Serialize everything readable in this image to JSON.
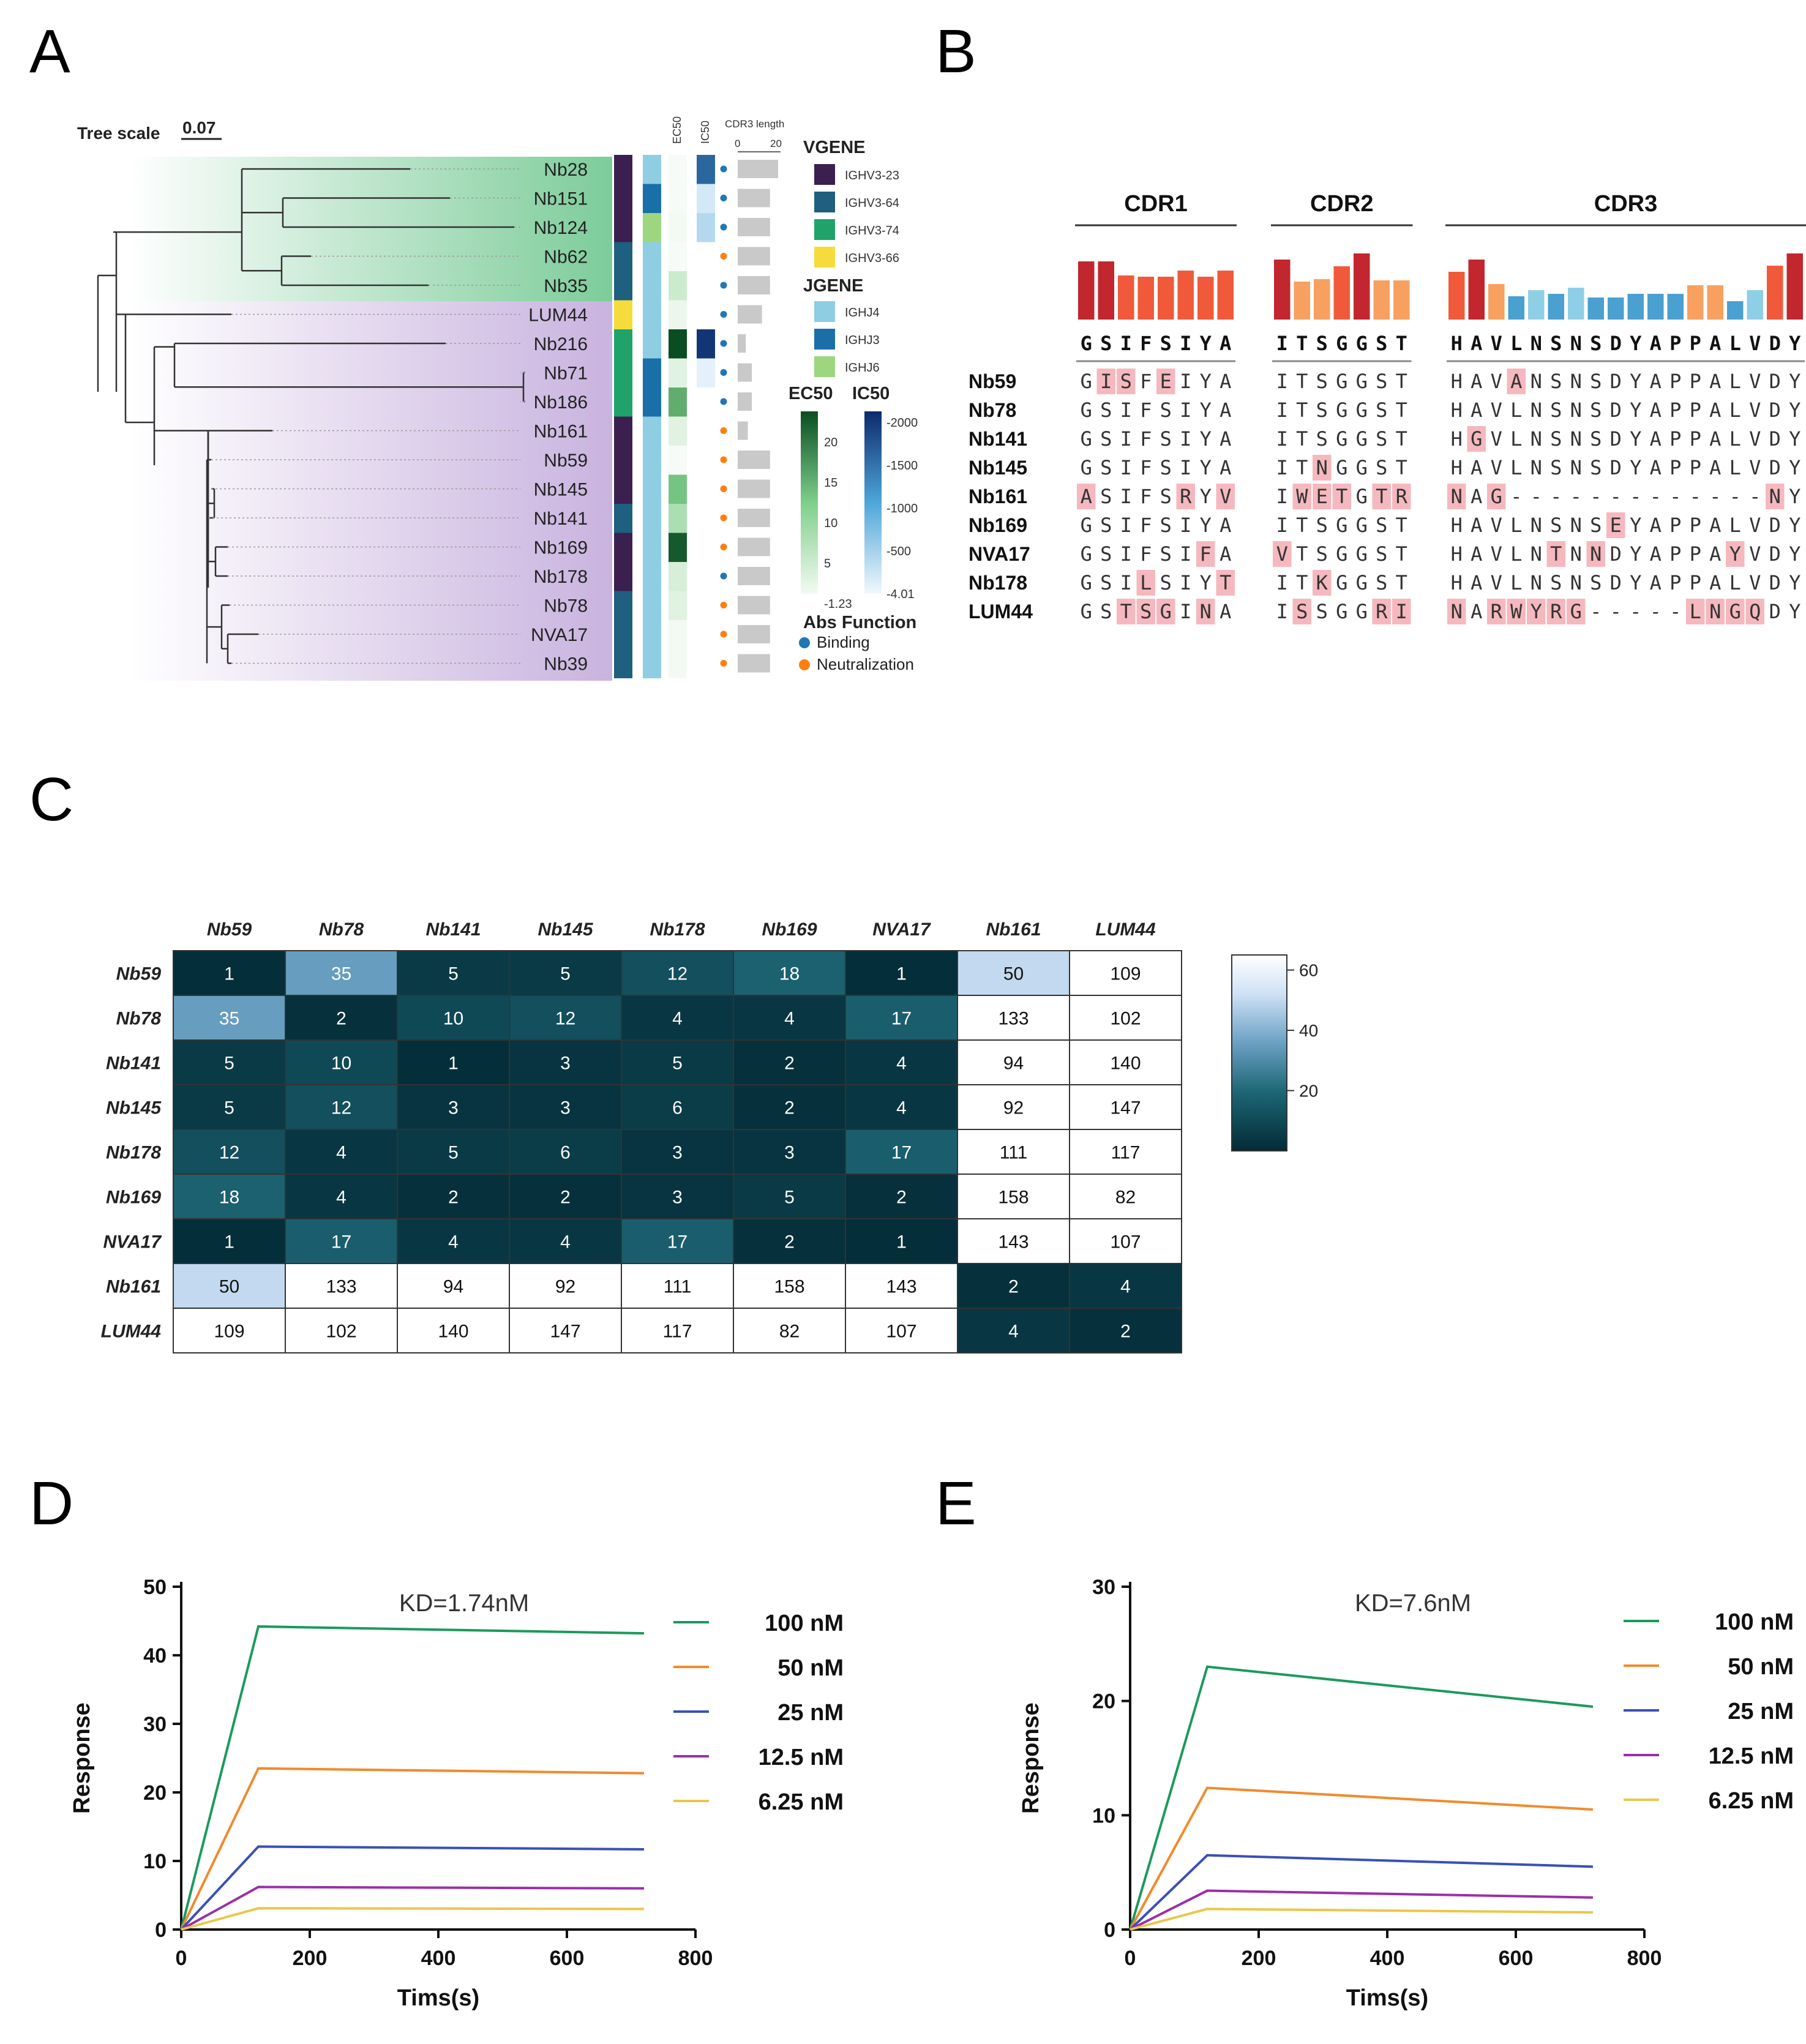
{
  "panels": {
    "a": "A",
    "b": "B",
    "c": "C",
    "d": "D",
    "e": "E"
  },
  "panel_a": {
    "tree_scale_label": "Tree scale",
    "tree_scale_value": "0.07",
    "col_headers": [
      "EC50",
      "IC50"
    ],
    "cdr3_header": "CDR3 length",
    "cdr3_ticks": [
      "0",
      "20"
    ],
    "leaves": [
      {
        "name": "Nb28",
        "vgene": "IGHV3-23",
        "jgene": "IGHJ4",
        "ec50": null,
        "ic50": 1600,
        "function": "Binding",
        "cdr3": 20
      },
      {
        "name": "Nb151",
        "vgene": "IGHV3-23",
        "jgene": "IGHJ3",
        "ec50": null,
        "ic50": 200,
        "function": "Binding",
        "cdr3": 16
      },
      {
        "name": "Nb124",
        "vgene": "IGHV3-23",
        "jgene": "IGHJ6",
        "ec50": 1,
        "ic50": 400,
        "function": "Binding",
        "cdr3": 16
      },
      {
        "name": "Nb62",
        "vgene": "IGHV3-64",
        "jgene": "IGHJ4",
        "ec50": null,
        "ic50": null,
        "function": "Neutralization",
        "cdr3": 16
      },
      {
        "name": "Nb35",
        "vgene": "IGHV3-64",
        "jgene": "IGHJ4",
        "ec50": 5,
        "ic50": null,
        "function": "Binding",
        "cdr3": 16
      },
      {
        "name": "LUM44",
        "vgene": "IGHV3-66",
        "jgene": "IGHJ4",
        "ec50": 2,
        "ic50": null,
        "function": "Binding",
        "cdr3": 12
      },
      {
        "name": "Nb216",
        "vgene": "IGHV3-74",
        "jgene": "IGHJ4",
        "ec50": 23,
        "ic50": 2000,
        "function": "Binding",
        "cdr3": 4
      },
      {
        "name": "Nb71",
        "vgene": "IGHV3-74",
        "jgene": "IGHJ3",
        "ec50": 3,
        "ic50": 100,
        "function": "Binding",
        "cdr3": 7
      },
      {
        "name": "Nb186",
        "vgene": "IGHV3-74",
        "jgene": "IGHJ3",
        "ec50": 15,
        "ic50": null,
        "function": "Binding",
        "cdr3": 7
      },
      {
        "name": "Nb161",
        "vgene": "IGHV3-23",
        "jgene": "IGHJ4",
        "ec50": 3,
        "ic50": null,
        "function": "Neutralization",
        "cdr3": 5
      },
      {
        "name": "Nb59",
        "vgene": "IGHV3-23",
        "jgene": "IGHJ4",
        "ec50": null,
        "ic50": null,
        "function": "Neutralization",
        "cdr3": 16
      },
      {
        "name": "Nb145",
        "vgene": "IGHV3-23",
        "jgene": "IGHJ4",
        "ec50": 13,
        "ic50": null,
        "function": "Neutralization",
        "cdr3": 16
      },
      {
        "name": "Nb141",
        "vgene": "IGHV3-64",
        "jgene": "IGHJ4",
        "ec50": 8,
        "ic50": null,
        "function": "Neutralization",
        "cdr3": 16
      },
      {
        "name": "Nb169",
        "vgene": "IGHV3-23",
        "jgene": "IGHJ4",
        "ec50": 22,
        "ic50": null,
        "function": "Neutralization",
        "cdr3": 16
      },
      {
        "name": "Nb178",
        "vgene": "IGHV3-23",
        "jgene": "IGHJ4",
        "ec50": 4,
        "ic50": null,
        "function": "Binding",
        "cdr3": 16
      },
      {
        "name": "Nb78",
        "vgene": "IGHV3-64",
        "jgene": "IGHJ4",
        "ec50": 3,
        "ic50": null,
        "function": "Neutralization",
        "cdr3": 16
      },
      {
        "name": "NVA17",
        "vgene": "IGHV3-64",
        "jgene": "IGHJ4",
        "ec50": 1,
        "ic50": null,
        "function": "Neutralization",
        "cdr3": 16
      },
      {
        "name": "Nb39",
        "vgene": "IGHV3-64",
        "jgene": "IGHJ4",
        "ec50": 1,
        "ic50": null,
        "function": "Neutralization",
        "cdr3": 16
      }
    ],
    "legend": {
      "vgene_title": "VGENE",
      "vgene": [
        {
          "label": "IGHV3-23",
          "color": "#3b1f4f"
        },
        {
          "label": "IGHV3-64",
          "color": "#1f5f80"
        },
        {
          "label": "IGHV3-74",
          "color": "#1fa36b"
        },
        {
          "label": "IGHV3-66",
          "color": "#f5dc3c"
        }
      ],
      "jgene_title": "JGENE",
      "jgene": [
        {
          "label": "IGHJ4",
          "color": "#8fcde3"
        },
        {
          "label": "IGHJ3",
          "color": "#1a6fa8"
        },
        {
          "label": "IGHJ6",
          "color": "#9ed57f"
        }
      ],
      "ec50_title": "EC50",
      "ec50_ticks": [
        "20",
        "15",
        "10",
        "5",
        "1.23"
      ],
      "ic50_title": "IC50",
      "ic50_ticks": [
        "2000",
        "1500",
        "1000",
        "500",
        "4.01"
      ],
      "function_title": "Abs Function",
      "function": [
        {
          "label": "Binding",
          "color": "#1f77b4"
        },
        {
          "label": "Neutralization",
          "color": "#ff7f0e"
        }
      ]
    }
  },
  "panel_b": {
    "regions": [
      "CDR1",
      "CDR2",
      "CDR3"
    ],
    "consensus": [
      "GSIFSIYA",
      "ITSGGST",
      "HAVLNSNSDYAPPALVDY"
    ],
    "rows": [
      {
        "name": "Nb59",
        "cdr1": "GISFEIYA",
        "cdr2": "ITSGGST",
        "cdr3": "HAVANSNSDYAPPALVDY"
      },
      {
        "name": "Nb78",
        "cdr1": "GSIFSIYA",
        "cdr2": "ITSGGST",
        "cdr3": "HAVLNSNSDYAPPALVDY"
      },
      {
        "name": "Nb141",
        "cdr1": "GSIFSIYA",
        "cdr2": "ITSGGST",
        "cdr3": "HGVLNSNSDYAPPALVDY"
      },
      {
        "name": "Nb145",
        "cdr1": "GSIFSIYA",
        "cdr2": "ITNGGST",
        "cdr3": "HAVLNSNSDYAPPALVDY"
      },
      {
        "name": "Nb161",
        "cdr1": "ASIFSRYV",
        "cdr2": "IWETGTR",
        "cdr3": "NAG-------------NY"
      },
      {
        "name": "Nb169",
        "cdr1": "GSIFSIYA",
        "cdr2": "ITSGGST",
        "cdr3": "HAVLNSNSEYAPPALVDY"
      },
      {
        "name": "NVA17",
        "cdr1": "GSIFSIFA",
        "cdr2": "VTSGGST",
        "cdr3": "HAVLNTNNDYAPPAYVDY"
      },
      {
        "name": "Nb178",
        "cdr1": "GSILSIYT",
        "cdr2": "ITKGGST",
        "cdr3": "HAVLNSNSDYAPPALVDY"
      },
      {
        "name": "LUM44",
        "cdr1": "GSTSGINA",
        "cdr2": "ISSGGRI",
        "cdr3": "NARWYRG-----LNGQDY"
      }
    ],
    "logo_heights": {
      "cdr1": [
        0.95,
        0.95,
        0.72,
        0.7,
        0.7,
        0.8,
        0.7,
        0.8
      ],
      "cdr2": [
        0.98,
        0.62,
        0.66,
        0.87,
        1.08,
        0.64,
        0.64
      ],
      "cdr3": [
        0.78,
        0.98,
        0.58,
        0.38,
        0.48,
        0.42,
        0.52,
        0.36,
        0.36,
        0.42,
        0.42,
        0.42,
        0.56,
        0.56,
        0.3,
        0.48,
        0.88,
        1.08
      ]
    }
  },
  "chart_data": [
    {
      "type": "heatmap",
      "row_labels": [
        "Nb59",
        "Nb78",
        "Nb141",
        "Nb145",
        "Nb178",
        "Nb169",
        "NVA17",
        "Nb161",
        "LUM44"
      ],
      "col_labels": [
        "Nb59",
        "Nb78",
        "Nb141",
        "Nb145",
        "Nb178",
        "Nb169",
        "NVA17",
        "Nb161",
        "LUM44"
      ],
      "values": [
        [
          1,
          35,
          5,
          5,
          12,
          18,
          1,
          50,
          109
        ],
        [
          35,
          2,
          10,
          12,
          4,
          4,
          17,
          133,
          102
        ],
        [
          5,
          10,
          1,
          3,
          5,
          2,
          4,
          94,
          140
        ],
        [
          5,
          12,
          3,
          3,
          6,
          2,
          4,
          92,
          147
        ],
        [
          12,
          4,
          5,
          6,
          3,
          3,
          17,
          111,
          117
        ],
        [
          18,
          4,
          2,
          2,
          3,
          5,
          2,
          158,
          82
        ],
        [
          1,
          17,
          4,
          4,
          17,
          2,
          1,
          143,
          107
        ],
        [
          50,
          133,
          94,
          92,
          111,
          158,
          143,
          2,
          4
        ],
        [
          109,
          102,
          140,
          147,
          117,
          82,
          107,
          4,
          2
        ]
      ],
      "colorbar_ticks": [
        "60",
        "40",
        "20"
      ],
      "vmin": 0,
      "vmax": 65
    },
    {
      "type": "line",
      "annotation": "KD=1.74nM",
      "xlabel": "Tims(s)",
      "ylabel": "Response",
      "xlim": [
        0,
        800
      ],
      "ylim": [
        0,
        50
      ],
      "xticks": [
        0,
        200,
        400,
        600,
        800
      ],
      "yticks": [
        0,
        10,
        20,
        30,
        40,
        50
      ],
      "series": [
        {
          "name": "100  nM",
          "color": "#1a9a5c",
          "x": [
            0,
            120,
            720
          ],
          "y": [
            0,
            44.2,
            43.2
          ]
        },
        {
          "name": "50   nM",
          "color": "#f28a2c",
          "x": [
            0,
            120,
            720
          ],
          "y": [
            0,
            23.5,
            22.8
          ]
        },
        {
          "name": "25   nM",
          "color": "#3a50b8",
          "x": [
            0,
            120,
            720
          ],
          "y": [
            0,
            12.1,
            11.7
          ]
        },
        {
          "name": "12.5 nM",
          "color": "#9b2fa8",
          "x": [
            0,
            120,
            720
          ],
          "y": [
            0,
            6.2,
            6.0
          ]
        },
        {
          "name": "6.25 nM",
          "color": "#e8c84a",
          "x": [
            0,
            120,
            720
          ],
          "y": [
            0,
            3.1,
            3.0
          ]
        }
      ]
    },
    {
      "type": "line",
      "annotation": "KD=7.6nM",
      "xlabel": "Tims(s)",
      "ylabel": "Response",
      "xlim": [
        0,
        800
      ],
      "ylim": [
        0,
        30
      ],
      "xticks": [
        0,
        200,
        400,
        600,
        800
      ],
      "yticks": [
        0,
        10,
        20,
        30
      ],
      "series": [
        {
          "name": "100  nM",
          "color": "#1a9a5c",
          "x": [
            0,
            120,
            720
          ],
          "y": [
            0,
            23.0,
            19.5
          ]
        },
        {
          "name": "50   nM",
          "color": "#f28a2c",
          "x": [
            0,
            120,
            720
          ],
          "y": [
            0,
            12.4,
            10.5
          ]
        },
        {
          "name": "25   nM",
          "color": "#3a50b8",
          "x": [
            0,
            120,
            720
          ],
          "y": [
            0,
            6.5,
            5.5
          ]
        },
        {
          "name": "12.5 nM",
          "color": "#9b2fa8",
          "x": [
            0,
            120,
            720
          ],
          "y": [
            0,
            3.4,
            2.8
          ]
        },
        {
          "name": "6.25 nM",
          "color": "#e8c84a",
          "x": [
            0,
            120,
            720
          ],
          "y": [
            0,
            1.8,
            1.5
          ]
        }
      ]
    }
  ]
}
